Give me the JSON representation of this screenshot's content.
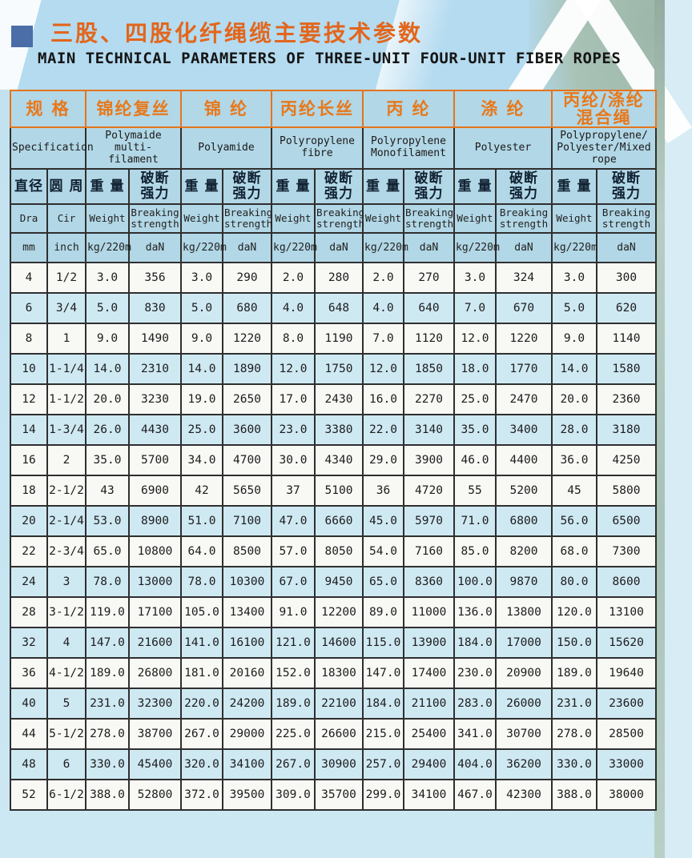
{
  "page": {
    "title_zh": "三股、四股化纤绳缆主要技术参数",
    "title_en": "MAIN TECHNICAL PARAMETERS OF THREE-UNIT FOUR-UNIT FIBER ROPES"
  },
  "colors": {
    "accent_orange": "#e8781a",
    "title_square_blue": "#4b6ea9",
    "header_bg": "#b2d7e6",
    "row_shaded": "#cfe9f3",
    "row_plain": "#f8f8f5",
    "border_dark": "#2f2f2f",
    "border_orange": "#e4751c"
  },
  "table": {
    "spec_header": {
      "zh": "规 格",
      "en": "Specification"
    },
    "dim_cols": [
      {
        "zh": "直径",
        "en": "Dra",
        "unit": "mm"
      },
      {
        "zh": "圆 周",
        "en": "Cir",
        "unit": "inch"
      }
    ],
    "materials": [
      {
        "zh_lines": [
          "锦纶复丝"
        ],
        "en_lines": [
          "Polymaide multi-",
          "filament"
        ]
      },
      {
        "zh_lines": [
          "锦 纶"
        ],
        "en_lines": [
          "Polyamide"
        ]
      },
      {
        "zh_lines": [
          "丙纶长丝"
        ],
        "en_lines": [
          "Polyropylene",
          "fibre"
        ]
      },
      {
        "zh_lines": [
          "丙 纶"
        ],
        "en_lines": [
          "Polyropylene",
          "Monofilament"
        ]
      },
      {
        "zh_lines": [
          "涤 纶"
        ],
        "en_lines": [
          "Polyester"
        ]
      },
      {
        "zh_lines": [
          "丙纶/涤纶",
          "混合绳"
        ],
        "en_lines": [
          "Polypropylene/",
          "Polyester/Mixed",
          "rope"
        ]
      }
    ],
    "measure_cols": {
      "weight": {
        "zh_lines": [
          "重 量"
        ],
        "en_lines": [
          "Weight"
        ],
        "unit": "kg/220m"
      },
      "breaking": {
        "zh_lines": [
          "破断",
          "强力"
        ],
        "en_lines": [
          "Breaking",
          "strength"
        ],
        "unit": "daN"
      }
    },
    "rows": [
      {
        "dia": "4",
        "cir": "1/2",
        "shaded": false,
        "values": [
          "3.0",
          "356",
          "3.0",
          "290",
          "2.0",
          "280",
          "2.0",
          "270",
          "3.0",
          "324",
          "3.0",
          "300"
        ]
      },
      {
        "dia": "6",
        "cir": "3/4",
        "shaded": true,
        "values": [
          "5.0",
          "830",
          "5.0",
          "680",
          "4.0",
          "648",
          "4.0",
          "640",
          "7.0",
          "670",
          "5.0",
          "620"
        ]
      },
      {
        "dia": "8",
        "cir": "1",
        "shaded": false,
        "values": [
          "9.0",
          "1490",
          "9.0",
          "1220",
          "8.0",
          "1190",
          "7.0",
          "1120",
          "12.0",
          "1220",
          "9.0",
          "1140"
        ]
      },
      {
        "dia": "10",
        "cir": "1-1/4",
        "shaded": true,
        "values": [
          "14.0",
          "2310",
          "14.0",
          "1890",
          "12.0",
          "1750",
          "12.0",
          "1850",
          "18.0",
          "1770",
          "14.0",
          "1580"
        ]
      },
      {
        "dia": "12",
        "cir": "1-1/2",
        "shaded": false,
        "values": [
          "20.0",
          "3230",
          "19.0",
          "2650",
          "17.0",
          "2430",
          "16.0",
          "2270",
          "25.0",
          "2470",
          "20.0",
          "2360"
        ]
      },
      {
        "dia": "14",
        "cir": "1-3/4",
        "shaded": true,
        "values": [
          "26.0",
          "4430",
          "25.0",
          "3600",
          "23.0",
          "3380",
          "22.0",
          "3140",
          "35.0",
          "3400",
          "28.0",
          "3180"
        ]
      },
      {
        "dia": "16",
        "cir": "2",
        "shaded": false,
        "values": [
          "35.0",
          "5700",
          "34.0",
          "4700",
          "30.0",
          "4340",
          "29.0",
          "3900",
          "46.0",
          "4400",
          "36.0",
          "4250"
        ]
      },
      {
        "dia": "18",
        "cir": "2-1/2",
        "shaded": false,
        "values": [
          "43",
          "6900",
          "42",
          "5650",
          "37",
          "5100",
          "36",
          "4720",
          "55",
          "5200",
          "45",
          "5800"
        ]
      },
      {
        "dia": "20",
        "cir": "2-1/4",
        "shaded": true,
        "values": [
          "53.0",
          "8900",
          "51.0",
          "7100",
          "47.0",
          "6660",
          "45.0",
          "5970",
          "71.0",
          "6800",
          "56.0",
          "6500"
        ]
      },
      {
        "dia": "22",
        "cir": "2-3/4",
        "shaded": false,
        "values": [
          "65.0",
          "10800",
          "64.0",
          "8500",
          "57.0",
          "8050",
          "54.0",
          "7160",
          "85.0",
          "8200",
          "68.0",
          "7300"
        ]
      },
      {
        "dia": "24",
        "cir": "3",
        "shaded": true,
        "values": [
          "78.0",
          "13000",
          "78.0",
          "10300",
          "67.0",
          "9450",
          "65.0",
          "8360",
          "100.0",
          "9870",
          "80.0",
          "8600"
        ]
      },
      {
        "dia": "28",
        "cir": "3-1/2",
        "shaded": false,
        "values": [
          "119.0",
          "17100",
          "105.0",
          "13400",
          "91.0",
          "12200",
          "89.0",
          "11000",
          "136.0",
          "13800",
          "120.0",
          "13100"
        ]
      },
      {
        "dia": "32",
        "cir": "4",
        "shaded": true,
        "values": [
          "147.0",
          "21600",
          "141.0",
          "16100",
          "121.0",
          "14600",
          "115.0",
          "13900",
          "184.0",
          "17000",
          "150.0",
          "15620"
        ]
      },
      {
        "dia": "36",
        "cir": "4-1/2",
        "shaded": false,
        "values": [
          "189.0",
          "26800",
          "181.0",
          "20160",
          "152.0",
          "18300",
          "147.0",
          "17400",
          "230.0",
          "20900",
          "189.0",
          "19640"
        ]
      },
      {
        "dia": "40",
        "cir": "5",
        "shaded": true,
        "values": [
          "231.0",
          "32300",
          "220.0",
          "24200",
          "189.0",
          "22100",
          "184.0",
          "21100",
          "283.0",
          "26000",
          "231.0",
          "23600"
        ]
      },
      {
        "dia": "44",
        "cir": "5-1/2",
        "shaded": false,
        "values": [
          "278.0",
          "38700",
          "267.0",
          "29000",
          "225.0",
          "26600",
          "215.0",
          "25400",
          "341.0",
          "30700",
          "278.0",
          "28500"
        ]
      },
      {
        "dia": "48",
        "cir": "6",
        "shaded": true,
        "values": [
          "330.0",
          "45400",
          "320.0",
          "34100",
          "267.0",
          "30900",
          "257.0",
          "29400",
          "404.0",
          "36200",
          "330.0",
          "33000"
        ]
      },
      {
        "dia": "52",
        "cir": "6-1/2",
        "shaded": false,
        "values": [
          "388.0",
          "52800",
          "372.0",
          "39500",
          "309.0",
          "35700",
          "299.0",
          "34100",
          "467.0",
          "42300",
          "388.0",
          "38000"
        ]
      }
    ]
  }
}
